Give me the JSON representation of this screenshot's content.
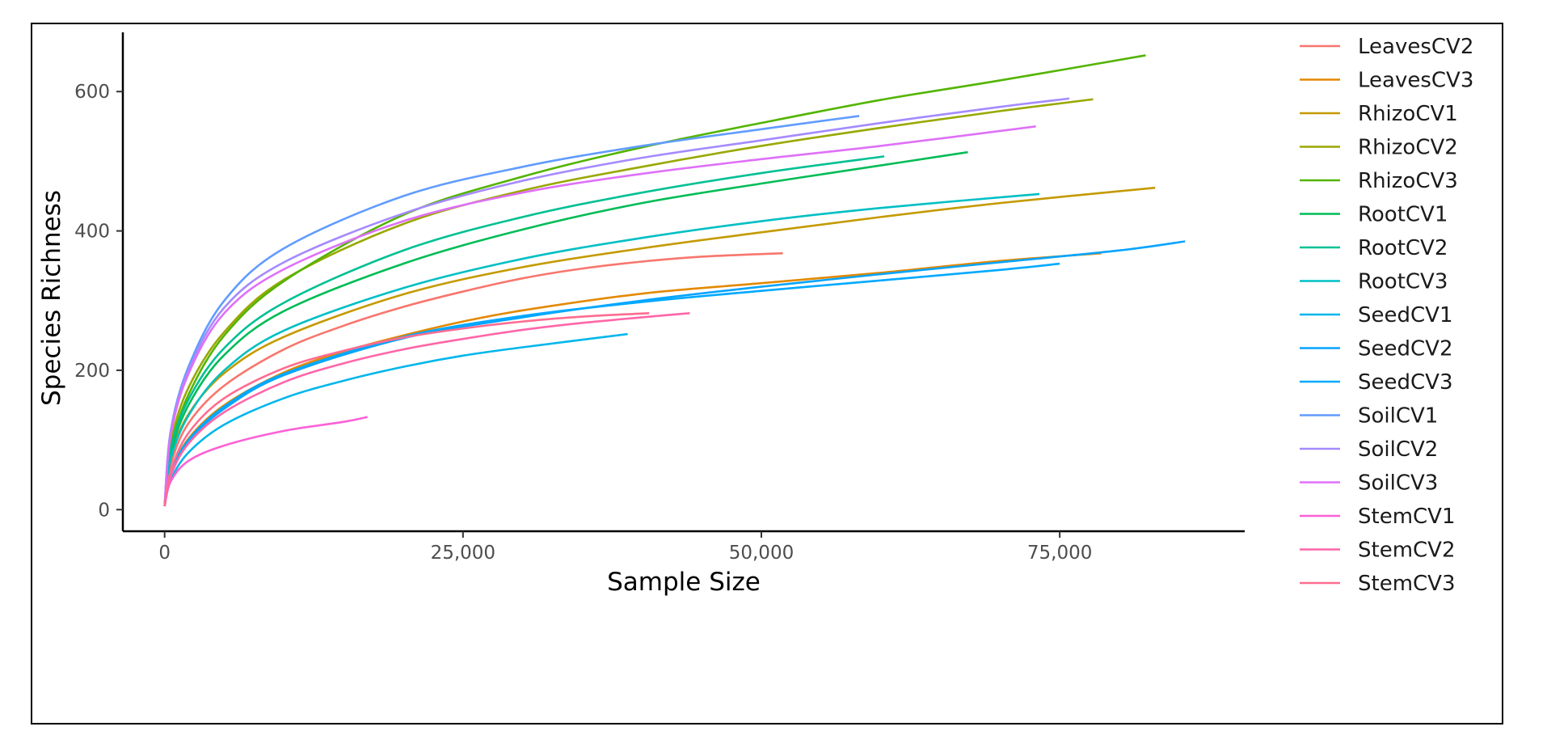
{
  "chart_data": {
    "type": "line",
    "title": "",
    "xlabel": "Sample Size",
    "ylabel": "Species Richness",
    "xlim": [
      -3500,
      90500
    ],
    "ylim": [
      -31,
      685
    ],
    "x_ticks": [
      0,
      25000,
      50000,
      75000
    ],
    "x_tick_labels": [
      "0",
      "25,000",
      "50,000",
      "75,000"
    ],
    "y_ticks": [
      0,
      200,
      400,
      600
    ],
    "y_tick_labels": [
      "0",
      "200",
      "400",
      "600"
    ],
    "grid": false,
    "legend_position": "right",
    "series": [
      {
        "name": "LeavesCV2",
        "color": "#F8766D",
        "x": [
          0,
          500,
          2000,
          5000,
          10000,
          15000,
          20000,
          25000,
          30000,
          35000,
          40000,
          45000,
          51800
        ],
        "values": [
          5,
          64,
          124,
          178,
          230,
          264,
          291,
          313,
          332,
          346,
          356,
          363,
          368
        ]
      },
      {
        "name": "LeavesCV3",
        "color": "#E38900",
        "x": [
          0,
          500,
          2000,
          5000,
          10000,
          15000,
          20000,
          25000,
          30000,
          40000,
          50000,
          60000,
          70000,
          78500
        ],
        "values": [
          5,
          52,
          102,
          150,
          197,
          227,
          250,
          270,
          286,
          310,
          325,
          340,
          357,
          368
        ]
      },
      {
        "name": "RhizoCV1",
        "color": "#C49A00",
        "x": [
          0,
          500,
          2000,
          5000,
          10000,
          20000,
          30000,
          40000,
          50000,
          60000,
          70000,
          83000
        ],
        "values": [
          5,
          75,
          137,
          196,
          248,
          309,
          348,
          375,
          398,
          420,
          440,
          462
        ]
      },
      {
        "name": "RhizoCV2",
        "color": "#99A800",
        "x": [
          0,
          500,
          2000,
          5000,
          10000,
          20000,
          30000,
          40000,
          50000,
          60000,
          70000,
          77800
        ],
        "values": [
          5,
          95,
          175,
          255,
          330,
          410,
          458,
          492,
          522,
          548,
          572,
          589
        ]
      },
      {
        "name": "RhizoCV3",
        "color": "#53B400",
        "x": [
          0,
          500,
          2000,
          5000,
          10000,
          20000,
          30000,
          40000,
          50000,
          60000,
          70000,
          82200
        ],
        "values": [
          5,
          88,
          165,
          250,
          328,
          423,
          478,
          520,
          555,
          588,
          616,
          652
        ]
      },
      {
        "name": "RootCV1",
        "color": "#00BC56",
        "x": [
          0,
          500,
          2000,
          5000,
          10000,
          20000,
          30000,
          40000,
          50000,
          60000,
          67300
        ],
        "values": [
          5,
          80,
          150,
          222,
          285,
          353,
          402,
          440,
          468,
          494,
          513
        ]
      },
      {
        "name": "RootCV2",
        "color": "#00C094",
        "x": [
          0,
          500,
          2000,
          5000,
          10000,
          20000,
          30000,
          40000,
          50000,
          60300
        ],
        "values": [
          5,
          86,
          158,
          232,
          297,
          372,
          420,
          455,
          483,
          507
        ]
      },
      {
        "name": "RootCV3",
        "color": "#00BFC4",
        "x": [
          0,
          500,
          2000,
          5000,
          10000,
          20000,
          30000,
          40000,
          50000,
          60000,
          73300
        ],
        "values": [
          5,
          72,
          135,
          200,
          257,
          318,
          360,
          390,
          414,
          433,
          453
        ]
      },
      {
        "name": "SeedCV1",
        "color": "#00B6EB",
        "x": [
          0,
          500,
          2000,
          5000,
          10000,
          15000,
          20000,
          25000,
          30000,
          38800
        ],
        "values": [
          5,
          42,
          82,
          122,
          160,
          185,
          205,
          221,
          233,
          252
        ]
      },
      {
        "name": "SeedCV2",
        "color": "#06A4FF",
        "x": [
          0,
          500,
          2000,
          5000,
          10000,
          20000,
          30000,
          40000,
          50000,
          60000,
          70000,
          80000,
          85500
        ],
        "values": [
          5,
          50,
          98,
          145,
          193,
          246,
          276,
          300,
          320,
          338,
          355,
          372,
          385
        ]
      },
      {
        "name": "SeedCV3",
        "color": "#00A9FF",
        "x": [
          0,
          500,
          2000,
          5000,
          10000,
          20000,
          30000,
          40000,
          50000,
          60000,
          70000,
          75000
        ],
        "values": [
          5,
          52,
          100,
          148,
          195,
          248,
          278,
          298,
          314,
          329,
          344,
          353
        ]
      },
      {
        "name": "SoilCV1",
        "color": "#619CFF",
        "x": [
          0,
          500,
          2000,
          5000,
          10000,
          20000,
          30000,
          40000,
          50000,
          58200
        ],
        "values": [
          5,
          112,
          205,
          300,
          375,
          450,
          492,
          522,
          546,
          565
        ]
      },
      {
        "name": "SoilCV2",
        "color": "#A58AFF",
        "x": [
          0,
          500,
          2000,
          5000,
          10000,
          20000,
          30000,
          40000,
          50000,
          60000,
          70000,
          75800
        ],
        "values": [
          5,
          110,
          200,
          290,
          355,
          425,
          472,
          505,
          530,
          555,
          578,
          590
        ]
      },
      {
        "name": "SoilCV3",
        "color": "#DF70F8",
        "x": [
          0,
          500,
          2000,
          5000,
          10000,
          20000,
          30000,
          40000,
          50000,
          60000,
          73000
        ],
        "values": [
          5,
          106,
          195,
          282,
          345,
          414,
          455,
          482,
          503,
          522,
          550
        ]
      },
      {
        "name": "StemCV1",
        "color": "#FB61D7",
        "x": [
          0,
          500,
          2000,
          5000,
          10000,
          15000,
          17000
        ],
        "values": [
          5,
          40,
          70,
          92,
          113,
          126,
          133
        ]
      },
      {
        "name": "StemCV2",
        "color": "#FF66A8",
        "x": [
          0,
          500,
          2000,
          5000,
          10000,
          15000,
          20000,
          25000,
          30000,
          35000,
          40000,
          44000
        ],
        "values": [
          5,
          48,
          95,
          140,
          183,
          210,
          230,
          245,
          258,
          268,
          276,
          282
        ]
      },
      {
        "name": "StemCV3",
        "color": "#FF6C91",
        "x": [
          0,
          500,
          2000,
          5000,
          10000,
          15000,
          20000,
          25000,
          30000,
          35000,
          40600
        ],
        "values": [
          5,
          55,
          110,
          160,
          203,
          228,
          247,
          260,
          270,
          277,
          282
        ]
      }
    ]
  }
}
